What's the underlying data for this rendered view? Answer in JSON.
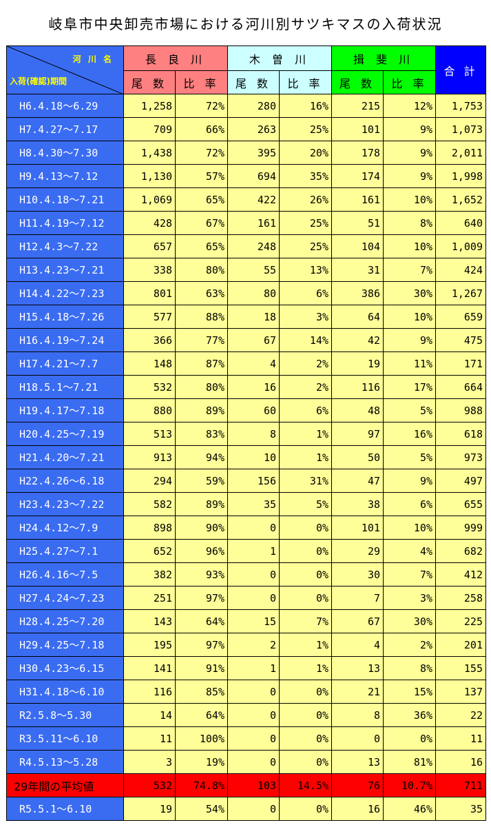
{
  "title": "岐阜市中央卸売市場における河川別サツキマスの入荷状況",
  "header": {
    "corner_top": "河 川 名",
    "corner_bottom": "入荷(確認)期間",
    "nagara": "長 良 川",
    "kiso": "木 曽 川",
    "ibi": "揖 斐 川",
    "total": "合 計",
    "count": "尾 数",
    "ratio": "比 率"
  },
  "colors": {
    "nagara": "#ff8080",
    "kiso": "#ccffff",
    "ibi": "#00ff00",
    "total": "#0000ff",
    "period_bg": "#3a6cf2",
    "cell_bg": "#ffff99",
    "avg_bg": "#ff0000"
  },
  "rows": [
    {
      "period": "H6.4.18～6.29",
      "n": "1,258",
      "nr": "72%",
      "k": "280",
      "kr": "16%",
      "i": "215",
      "ir": "12%",
      "t": "1,753"
    },
    {
      "period": "H7.4.27～7.17",
      "n": "709",
      "nr": "66%",
      "k": "263",
      "kr": "25%",
      "i": "101",
      "ir": "9%",
      "t": "1,073"
    },
    {
      "period": "H8.4.30～7.30",
      "n": "1,438",
      "nr": "72%",
      "k": "395",
      "kr": "20%",
      "i": "178",
      "ir": "9%",
      "t": "2,011"
    },
    {
      "period": "H9.4.13～7.12",
      "n": "1,130",
      "nr": "57%",
      "k": "694",
      "kr": "35%",
      "i": "174",
      "ir": "9%",
      "t": "1,998"
    },
    {
      "period": "H10.4.18～7.21",
      "n": "1,069",
      "nr": "65%",
      "k": "422",
      "kr": "26%",
      "i": "161",
      "ir": "10%",
      "t": "1,652"
    },
    {
      "period": "H11.4.19～7.12",
      "n": "428",
      "nr": "67%",
      "k": "161",
      "kr": "25%",
      "i": "51",
      "ir": "8%",
      "t": "640"
    },
    {
      "period": "H12.4.3～7.22",
      "n": "657",
      "nr": "65%",
      "k": "248",
      "kr": "25%",
      "i": "104",
      "ir": "10%",
      "t": "1,009"
    },
    {
      "period": "H13.4.23～7.21",
      "n": "338",
      "nr": "80%",
      "k": "55",
      "kr": "13%",
      "i": "31",
      "ir": "7%",
      "t": "424"
    },
    {
      "period": "H14.4.22～7.23",
      "n": "801",
      "nr": "63%",
      "k": "80",
      "kr": "6%",
      "i": "386",
      "ir": "30%",
      "t": "1,267"
    },
    {
      "period": "H15.4.18～7.26",
      "n": "577",
      "nr": "88%",
      "k": "18",
      "kr": "3%",
      "i": "64",
      "ir": "10%",
      "t": "659"
    },
    {
      "period": "H16.4.19～7.24",
      "n": "366",
      "nr": "77%",
      "k": "67",
      "kr": "14%",
      "i": "42",
      "ir": "9%",
      "t": "475"
    },
    {
      "period": "H17.4.21～7.7",
      "n": "148",
      "nr": "87%",
      "k": "4",
      "kr": "2%",
      "i": "19",
      "ir": "11%",
      "t": "171"
    },
    {
      "period": "H18.5.1～7.21",
      "n": "532",
      "nr": "80%",
      "k": "16",
      "kr": "2%",
      "i": "116",
      "ir": "17%",
      "t": "664"
    },
    {
      "period": "H19.4.17～7.18",
      "n": "880",
      "nr": "89%",
      "k": "60",
      "kr": "6%",
      "i": "48",
      "ir": "5%",
      "t": "988"
    },
    {
      "period": "H20.4.25～7.19",
      "n": "513",
      "nr": "83%",
      "k": "8",
      "kr": "1%",
      "i": "97",
      "ir": "16%",
      "t": "618"
    },
    {
      "period": "H21.4.20～7.21",
      "n": "913",
      "nr": "94%",
      "k": "10",
      "kr": "1%",
      "i": "50",
      "ir": "5%",
      "t": "973"
    },
    {
      "period": "H22.4.26～6.18",
      "n": "294",
      "nr": "59%",
      "k": "156",
      "kr": "31%",
      "i": "47",
      "ir": "9%",
      "t": "497"
    },
    {
      "period": "H23.4.23～7.22",
      "n": "582",
      "nr": "89%",
      "k": "35",
      "kr": "5%",
      "i": "38",
      "ir": "6%",
      "t": "655"
    },
    {
      "period": "H24.4.12～7.9",
      "n": "898",
      "nr": "90%",
      "k": "0",
      "kr": "0%",
      "i": "101",
      "ir": "10%",
      "t": "999"
    },
    {
      "period": "H25.4.27～7.1",
      "n": "652",
      "nr": "96%",
      "k": "1",
      "kr": "0%",
      "i": "29",
      "ir": "4%",
      "t": "682"
    },
    {
      "period": "H26.4.16～7.5",
      "n": "382",
      "nr": "93%",
      "k": "0",
      "kr": "0%",
      "i": "30",
      "ir": "7%",
      "t": "412"
    },
    {
      "period": "H27.4.24～7.23",
      "n": "251",
      "nr": "97%",
      "k": "0",
      "kr": "0%",
      "i": "7",
      "ir": "3%",
      "t": "258"
    },
    {
      "period": "H28.4.25～7.20",
      "n": "143",
      "nr": "64%",
      "k": "15",
      "kr": "7%",
      "i": "67",
      "ir": "30%",
      "t": "225"
    },
    {
      "period": "H29.4.25～7.18",
      "n": "195",
      "nr": "97%",
      "k": "2",
      "kr": "1%",
      "i": "4",
      "ir": "2%",
      "t": "201"
    },
    {
      "period": "H30.4.23～6.15",
      "n": "141",
      "nr": "91%",
      "k": "1",
      "kr": "1%",
      "i": "13",
      "ir": "8%",
      "t": "155"
    },
    {
      "period": "H31.4.18～6.10",
      "n": "116",
      "nr": "85%",
      "k": "0",
      "kr": "0%",
      "i": "21",
      "ir": "15%",
      "t": "137"
    },
    {
      "period": "R2.5.8～5.30",
      "n": "14",
      "nr": "64%",
      "k": "0",
      "kr": "0%",
      "i": "8",
      "ir": "36%",
      "t": "22"
    },
    {
      "period": "R3.5.11～6.10",
      "n": "11",
      "nr": "100%",
      "k": "0",
      "kr": "0%",
      "i": "0",
      "ir": "0%",
      "t": "11"
    },
    {
      "period": "R4.5.13～5.28",
      "n": "3",
      "nr": "19%",
      "k": "0",
      "kr": "0%",
      "i": "13",
      "ir": "81%",
      "t": "16"
    }
  ],
  "average": {
    "period": "29年間の平均値",
    "n": "532",
    "nr": "74.8%",
    "k": "103",
    "kr": "14.5%",
    "i": "76",
    "ir": "10.7%",
    "t": "711"
  },
  "latest": {
    "period": "R5.5.1～6.10",
    "n": "19",
    "nr": "54%",
    "k": "0",
    "kr": "0%",
    "i": "16",
    "ir": "46%",
    "t": "35"
  }
}
